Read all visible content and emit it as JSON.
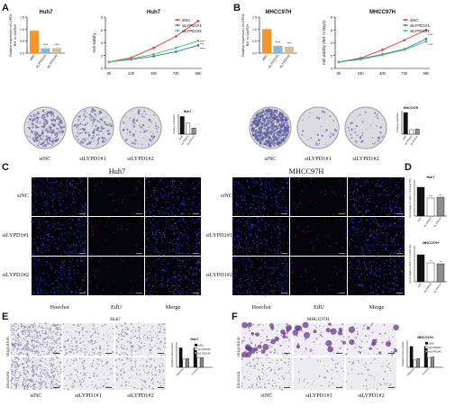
{
  "panels": {
    "A": {
      "letter": "A",
      "bar": {
        "title": "Huh7",
        "ylabel": "Relative expression of LYPD1\nRef. to GAPDH",
        "categories": [
          "siNC",
          "siLYPD1#1",
          "siLYPD1#2"
        ],
        "values": [
          0.93,
          0.2,
          0.21
        ],
        "colors": [
          "#f5942a",
          "#8ab6d8",
          "#c9c49a"
        ],
        "stars": [
          "",
          "****",
          "****"
        ],
        "yticks": [
          "0.0",
          "0.5",
          "1.0",
          "1.5"
        ]
      },
      "line": {
        "title": "Huh7",
        "ylabel": "Cell viability",
        "x": [
          "0h",
          "24h",
          "48h",
          "72h",
          "96h"
        ],
        "yticks": [
          "0",
          "2",
          "4",
          "6",
          "8"
        ],
        "series": [
          {
            "name": "siNC",
            "color": "#e8322d",
            "values": [
              1.0,
              1.7,
              3.2,
              5.0,
              7.4
            ]
          },
          {
            "name": "siLYPD1#1",
            "color": "#2f6fd0",
            "values": [
              1.0,
              1.4,
              1.9,
              2.6,
              3.6
            ]
          },
          {
            "name": "siLYPD1#2",
            "color": "#4cc24c",
            "values": [
              1.0,
              1.5,
              2.2,
              3.2,
              4.3
            ]
          }
        ],
        "stars": [
          "****",
          "***",
          "****"
        ]
      },
      "colony_labels": [
        "siNC",
        "siLYPD1#1",
        "siLYPD1#2"
      ],
      "mini": {
        "title": "Huh7",
        "ylabel": "Colony numbers",
        "values": [
          160,
          100,
          55
        ],
        "categories": [
          "siNC",
          "siLYPD1#1",
          "siLYPD1#2"
        ]
      }
    },
    "B": {
      "letter": "B",
      "bar": {
        "title": "MHCC97H",
        "ylabel": "Relative expression of LYPD1\nRef. to GAPDH",
        "categories": [
          "siNC",
          "siLYPD1#1",
          "siLYPD1#2"
        ],
        "values": [
          1.0,
          0.3,
          0.27
        ],
        "colors": [
          "#f5942a",
          "#8ab6d8",
          "#c9c49a"
        ],
        "stars": [
          "",
          "****",
          "****"
        ],
        "yticks": [
          "0.0",
          "0.5",
          "1.0",
          "1.5"
        ]
      },
      "line": {
        "title": "MHCC97H",
        "ylabel": "Cell viability (Ref. to Day1)",
        "x": [
          "0h",
          "24h",
          "48h",
          "72h",
          "96h"
        ],
        "yticks": [
          "0",
          "2",
          "4",
          "6",
          "8"
        ],
        "series": [
          {
            "name": "siNC",
            "color": "#e8322d",
            "values": [
              1.0,
              1.6,
              2.9,
              4.4,
              6.0
            ]
          },
          {
            "name": "siLYPD1#1",
            "color": "#2f6fd0",
            "values": [
              1.0,
              1.5,
              2.2,
              3.0,
              4.6
            ]
          },
          {
            "name": "siLYPD1#2",
            "color": "#4cc24c",
            "values": [
              1.0,
              1.4,
              2.1,
              2.9,
              4.2
            ]
          }
        ],
        "stars": [
          "****",
          "****"
        ]
      },
      "colony_labels": [
        "siNC",
        "siLYPD1#1",
        "siLYPD1#2"
      ],
      "mini": {
        "title": "MHCC97H",
        "ylabel": "Colony numbers",
        "values": [
          1200,
          250,
          280
        ],
        "categories": [
          "siNC",
          "siLYPD1#1",
          "siLYPD1#2"
        ]
      }
    },
    "C": {
      "letter": "C",
      "left_title": "Huh7",
      "right_title": "MHCC97H",
      "rows": [
        "siNC",
        "siLYPD1#1",
        "siLYPD1#2"
      ],
      "cols": [
        "Hoechst",
        "EdU",
        "Merge"
      ]
    },
    "D": {
      "letter": "D",
      "top": {
        "title": "Huh7",
        "ylabel": "Percentage of cells in S phase (%)",
        "values": [
          32,
          20,
          21
        ],
        "stars": [
          "",
          "***",
          "***"
        ],
        "categories": [
          "siNC",
          "siLYPD1#1",
          "siLYPD1#2"
        ]
      },
      "bottom": {
        "title": "MHCC97H",
        "ylabel": "Percentage of cells in S phase (%)",
        "values": [
          30,
          21,
          20
        ],
        "stars": [
          "",
          "**",
          "**"
        ],
        "categories": [
          "siNC",
          "siLYPD1#1",
          "siLYPD1#2"
        ]
      }
    },
    "E": {
      "letter": "E",
      "title": "Huh7",
      "rows": [
        "migration",
        "invasion"
      ],
      "cols": [
        "siNC",
        "siLYPD1#1",
        "siLYPD1#2"
      ],
      "chart": {
        "title": "Huh7",
        "ylabel": "Relative cell number",
        "groups": [
          "migration",
          "invasion"
        ],
        "legend": [
          "siNC",
          "siLYPD1#1",
          "siLYPD1#2"
        ],
        "values": [
          [
            1.0,
            0.42,
            0.45
          ],
          [
            1.0,
            0.48,
            0.5
          ]
        ]
      }
    },
    "F": {
      "letter": "F",
      "title": "MHCC97H",
      "rows": [
        "migration",
        "invasion"
      ],
      "cols": [
        "siNC",
        "siLYPD1#1",
        "siLYPD1#2"
      ],
      "chart": {
        "title": "MHCC97H",
        "ylabel": "Relative cell number",
        "groups": [
          "migration",
          "invasion"
        ],
        "legend": [
          "siNC",
          "siLYPD1#1",
          "siLYPD1#2"
        ],
        "values": [
          [
            1.0,
            0.35,
            0.42
          ],
          [
            1.0,
            0.45,
            0.5
          ]
        ]
      }
    }
  }
}
